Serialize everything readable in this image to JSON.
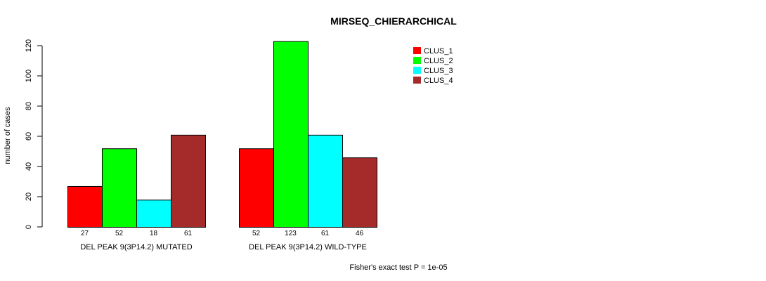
{
  "chart_data": {
    "type": "bar",
    "title": "MIRSEQ_CHIERARCHICAL",
    "ylabel": "number of cases",
    "xlabel": "",
    "ylim": [
      0,
      120
    ],
    "yticks": [
      0,
      20,
      40,
      60,
      80,
      100,
      120
    ],
    "groups": [
      "DEL PEAK 9(3P14.2) MUTATED",
      "DEL PEAK 9(3P14.2) WILD-TYPE"
    ],
    "series": [
      {
        "name": "CLUS_1",
        "color": "#ff0000",
        "values": [
          27,
          52
        ]
      },
      {
        "name": "CLUS_2",
        "color": "#00ff00",
        "values": [
          52,
          123
        ]
      },
      {
        "name": "CLUS_3",
        "color": "#00ffff",
        "values": [
          18,
          61
        ]
      },
      {
        "name": "CLUS_4",
        "color": "#a52a2a",
        "values": [
          61,
          46
        ]
      }
    ],
    "bar_labels": [
      [
        "27",
        "52",
        "18",
        "61"
      ],
      [
        "52",
        "123",
        "61",
        "46"
      ]
    ],
    "legend_position": "top-right",
    "footnote": "Fisher's exact test P = 1e-05"
  }
}
